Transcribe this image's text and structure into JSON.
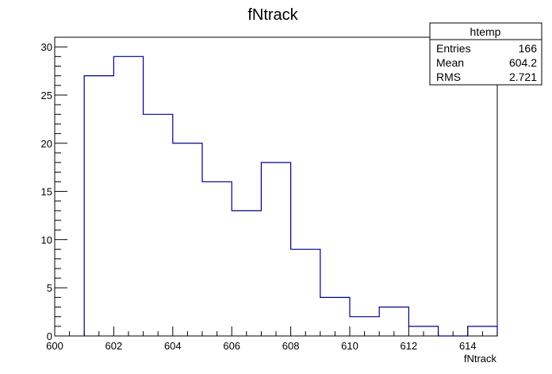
{
  "chart_data": {
    "type": "bar",
    "title": "fNtrack",
    "xlabel": "fNtrack",
    "ylabel": "",
    "xlim": [
      600,
      615
    ],
    "ylim": [
      0,
      31
    ],
    "bin_edges": [
      601,
      602,
      603,
      604,
      605,
      606,
      607,
      608,
      609,
      610,
      611,
      612,
      613,
      614,
      615
    ],
    "values": [
      27,
      29,
      23,
      20,
      16,
      13,
      18,
      9,
      4,
      2,
      3,
      1,
      0,
      1
    ],
    "x_tick_labels": [
      "600",
      "602",
      "604",
      "606",
      "608",
      "610",
      "612",
      "614"
    ],
    "y_tick_labels": [
      "0",
      "5",
      "10",
      "15",
      "20",
      "25",
      "30"
    ],
    "line_color": "#00008b",
    "grid": false
  },
  "stats_box": {
    "title": "htemp",
    "rows": [
      {
        "label": "Entries",
        "value": "166"
      },
      {
        "label": "Mean",
        "value": "604.2"
      },
      {
        "label": "RMS",
        "value": "2.721"
      }
    ]
  }
}
